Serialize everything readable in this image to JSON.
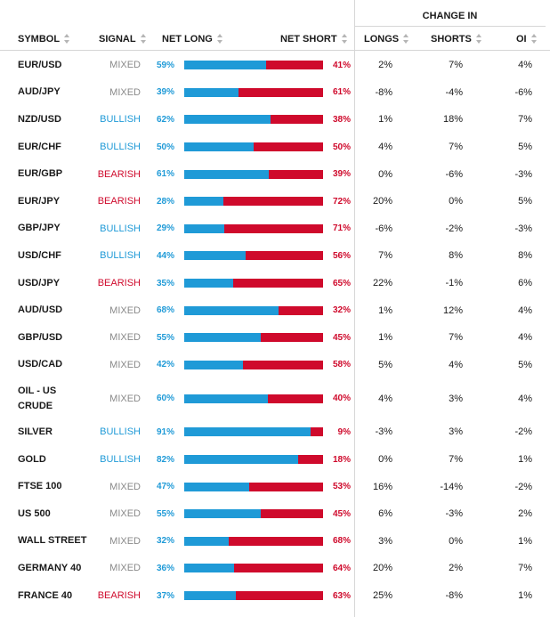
{
  "header": {
    "change_in": "CHANGE IN",
    "symbol": "SYMBOL",
    "signal": "SIGNAL",
    "net_long": "NET LONG",
    "net_short": "NET SHORT",
    "longs": "LONGS",
    "shorts": "SHORTS",
    "oi": "OI"
  },
  "colors": {
    "long": "#1f9ad7",
    "short": "#cf0a2c",
    "mixed": "#8a8a8a"
  },
  "rows": [
    {
      "symbol": "EUR/USD",
      "signal": "MIXED",
      "long": "59%",
      "short": "41%",
      "long_value": 59,
      "longs": "2%",
      "shorts": "7%",
      "oi": "4%"
    },
    {
      "symbol": "AUD/JPY",
      "signal": "MIXED",
      "long": "39%",
      "short": "61%",
      "long_value": 39,
      "longs": "-8%",
      "shorts": "-4%",
      "oi": "-6%"
    },
    {
      "symbol": "NZD/USD",
      "signal": "BULLISH",
      "long": "62%",
      "short": "38%",
      "long_value": 62,
      "longs": "1%",
      "shorts": "18%",
      "oi": "7%"
    },
    {
      "symbol": "EUR/CHF",
      "signal": "BULLISH",
      "long": "50%",
      "short": "50%",
      "long_value": 50,
      "longs": "4%",
      "shorts": "7%",
      "oi": "5%"
    },
    {
      "symbol": "EUR/GBP",
      "signal": "BEARISH",
      "long": "61%",
      "short": "39%",
      "long_value": 61,
      "longs": "0%",
      "shorts": "-6%",
      "oi": "-3%"
    },
    {
      "symbol": "EUR/JPY",
      "signal": "BEARISH",
      "long": "28%",
      "short": "72%",
      "long_value": 28,
      "longs": "20%",
      "shorts": "0%",
      "oi": "5%"
    },
    {
      "symbol": "GBP/JPY",
      "signal": "BULLISH",
      "long": "29%",
      "short": "71%",
      "long_value": 29,
      "longs": "-6%",
      "shorts": "-2%",
      "oi": "-3%"
    },
    {
      "symbol": "USD/CHF",
      "signal": "BULLISH",
      "long": "44%",
      "short": "56%",
      "long_value": 44,
      "longs": "7%",
      "shorts": "8%",
      "oi": "8%"
    },
    {
      "symbol": "USD/JPY",
      "signal": "BEARISH",
      "long": "35%",
      "short": "65%",
      "long_value": 35,
      "longs": "22%",
      "shorts": "-1%",
      "oi": "6%"
    },
    {
      "symbol": "AUD/USD",
      "signal": "MIXED",
      "long": "68%",
      "short": "32%",
      "long_value": 68,
      "longs": "1%",
      "shorts": "12%",
      "oi": "4%"
    },
    {
      "symbol": "GBP/USD",
      "signal": "MIXED",
      "long": "55%",
      "short": "45%",
      "long_value": 55,
      "longs": "1%",
      "shorts": "7%",
      "oi": "4%"
    },
    {
      "symbol": "USD/CAD",
      "signal": "MIXED",
      "long": "42%",
      "short": "58%",
      "long_value": 42,
      "longs": "5%",
      "shorts": "4%",
      "oi": "5%"
    },
    {
      "symbol": "OIL - US CRUDE",
      "signal": "MIXED",
      "long": "60%",
      "short": "40%",
      "long_value": 60,
      "longs": "4%",
      "shorts": "3%",
      "oi": "4%",
      "tall": true
    },
    {
      "symbol": "SILVER",
      "signal": "BULLISH",
      "long": "91%",
      "short": "9%",
      "long_value": 91,
      "longs": "-3%",
      "shorts": "3%",
      "oi": "-2%"
    },
    {
      "symbol": "GOLD",
      "signal": "BULLISH",
      "long": "82%",
      "short": "18%",
      "long_value": 82,
      "longs": "0%",
      "shorts": "7%",
      "oi": "1%"
    },
    {
      "symbol": "FTSE 100",
      "signal": "MIXED",
      "long": "47%",
      "short": "53%",
      "long_value": 47,
      "longs": "16%",
      "shorts": "-14%",
      "oi": "-2%"
    },
    {
      "symbol": "US 500",
      "signal": "MIXED",
      "long": "55%",
      "short": "45%",
      "long_value": 55,
      "longs": "6%",
      "shorts": "-3%",
      "oi": "2%"
    },
    {
      "symbol": "WALL STREET",
      "signal": "MIXED",
      "long": "32%",
      "short": "68%",
      "long_value": 32,
      "longs": "3%",
      "shorts": "0%",
      "oi": "1%"
    },
    {
      "symbol": "GERMANY 40",
      "signal": "MIXED",
      "long": "36%",
      "short": "64%",
      "long_value": 36,
      "longs": "20%",
      "shorts": "2%",
      "oi": "7%"
    },
    {
      "symbol": "FRANCE 40",
      "signal": "BEARISH",
      "long": "37%",
      "short": "63%",
      "long_value": 37,
      "longs": "25%",
      "shorts": "-8%",
      "oi": "1%"
    }
  ]
}
